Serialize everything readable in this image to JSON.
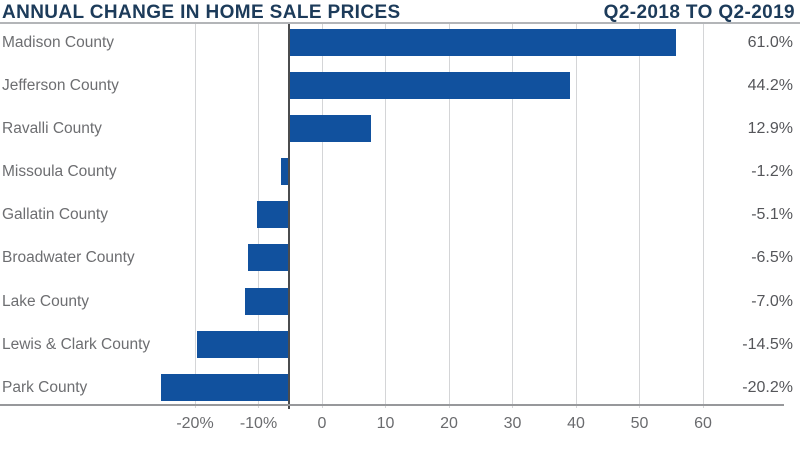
{
  "header": {
    "title": "ANNUAL CHANGE IN HOME SALE PRICES",
    "subtitle": "Q2-2018 TO Q2-2019"
  },
  "chart_data": {
    "type": "bar",
    "orientation": "horizontal",
    "title": "ANNUAL CHANGE IN HOME SALE PRICES",
    "subtitle": "Q2-2018 TO Q2-2019",
    "categories": [
      "Madison County",
      "Jefferson County",
      "Ravalli County",
      "Missoula County",
      "Gallatin County",
      "Broadwater County",
      "Lake County",
      "Lewis & Clark County",
      "Park County"
    ],
    "values": [
      61.0,
      44.2,
      12.9,
      -1.2,
      -5.1,
      -6.5,
      -7.0,
      -14.5,
      -20.2
    ],
    "value_labels": [
      "61.0%",
      "44.2%",
      "12.9%",
      "-1.2%",
      "-5.1%",
      "-6.5%",
      "-7.0%",
      "-14.5%",
      "-20.2%"
    ],
    "x_ticks": [
      {
        "value": -20,
        "label": "-20%"
      },
      {
        "value": -10,
        "label": "-10%"
      },
      {
        "value": 0,
        "label": "0"
      },
      {
        "value": 10,
        "label": "10"
      },
      {
        "value": 20,
        "label": "20"
      },
      {
        "value": 30,
        "label": "30"
      },
      {
        "value": 40,
        "label": "40"
      },
      {
        "value": 50,
        "label": "50"
      },
      {
        "value": 60,
        "label": "60"
      }
    ],
    "xlim": [
      -25.5,
      75.5
    ],
    "grid": true,
    "legend": false,
    "baseline_value": -5.2,
    "colors": {
      "bar": "#11519e",
      "title": "#1c3b5a",
      "category_label": "#6d6e71",
      "value_label": "#55565a",
      "tick_label": "#6a6b6e",
      "gridline": "#d4d5d7",
      "baseline": "#4b4c4e",
      "axis_line": "#97989b",
      "header_rule": "#b3b5b8"
    }
  }
}
